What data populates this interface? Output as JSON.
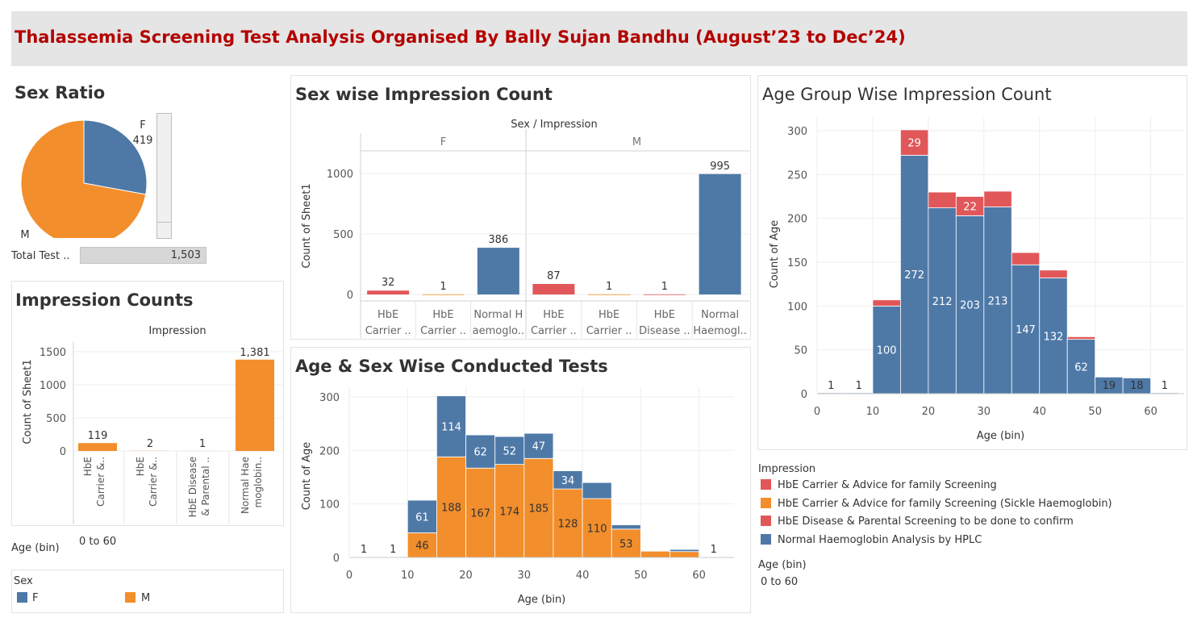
{
  "page_title": "Thalassemia Screening Test Analysis Organised By Bally Sujan Bandhu (August’23 to Dec’24)",
  "colors": {
    "blue": "#4e79a7",
    "orange": "#f28e2b",
    "red": "#e15759",
    "title_red": "#b30000"
  },
  "sex_ratio": {
    "heading": "Sex Ratio",
    "total_label": "Total Test ..",
    "total_value": "1,503"
  },
  "impression_counts": {
    "heading": "Impression Counts",
    "column_title": "Impression"
  },
  "sex_wise": {
    "heading": "Sex wise Impression Count",
    "column_title": "Sex / Impression"
  },
  "age_sex": {
    "heading": "Age & Sex Wise Conducted Tests"
  },
  "age_group": {
    "heading": "Age Group Wise Impression Count"
  },
  "filters": {
    "age_bin_label": "Age (bin)",
    "age_bin_value": "0 to 60",
    "age_bin_label_right": "Age (bin)",
    "age_bin_value_right": "0 to 60"
  },
  "sex_legend": {
    "title": "Sex",
    "items": [
      {
        "label": "F",
        "color": "#4e79a7"
      },
      {
        "label": "M",
        "color": "#f28e2b"
      }
    ]
  },
  "impression_legend": {
    "title": "Impression",
    "items": [
      {
        "label": "HbE Carrier & Advice for family Screening",
        "color": "#e15759"
      },
      {
        "label": "HbE Carrier & Advice for family Screening (Sickle Haemoglobin)",
        "color": "#f28e2b"
      },
      {
        "label": "HbE Disease & Parental Screening to be done to confirm",
        "color": "#e15759"
      },
      {
        "label": "Normal Haemoglobin Analysis by HPLC",
        "color": "#4e79a7"
      }
    ]
  },
  "chart_data": [
    {
      "id": "sex_ratio",
      "type": "pie",
      "labels": [
        "F",
        "M"
      ],
      "values": [
        419,
        1084
      ],
      "data_labels": [
        "F\n419",
        "M"
      ],
      "colors": [
        "#4e79a7",
        "#f28e2b"
      ]
    },
    {
      "id": "impression_counts",
      "type": "bar",
      "categories": [
        "HbE Carrier &..",
        "HbE Carrier &..",
        "HbE Disease & Parental ..",
        "Normal Haemoglobin.."
      ],
      "category_lines": [
        [
          "HbE",
          "Carrier &.."
        ],
        [
          "HbE",
          "Carrier &.."
        ],
        [
          "HbE Disease",
          "& Parental .."
        ],
        [
          "Normal Hae",
          "moglobin.."
        ]
      ],
      "values": [
        119,
        2,
        1,
        1381
      ],
      "value_labels": [
        "119",
        "2",
        "1",
        "1,381"
      ],
      "ylabel": "Count of Sheet1",
      "yticks": [
        0,
        500,
        1000,
        1500
      ],
      "ylim": [
        0,
        1500
      ],
      "color": "#f28e2b"
    },
    {
      "id": "sex_wise_impression",
      "type": "bar",
      "groups": [
        {
          "name": "F",
          "categories": [
            [
              "HbE",
              "Carrier .."
            ],
            [
              "HbE",
              "Carrier .."
            ],
            [
              "Normal H",
              "aemoglo.."
            ]
          ],
          "values": [
            32,
            1,
            386
          ],
          "colors": [
            "#e15759",
            "#f28e2b",
            "#4e79a7"
          ]
        },
        {
          "name": "M",
          "categories": [
            [
              "HbE",
              "Carrier .."
            ],
            [
              "HbE",
              "Carrier .."
            ],
            [
              "HbE",
              "Disease .."
            ],
            [
              "Normal",
              "Haemogl.."
            ]
          ],
          "values": [
            87,
            1,
            1,
            995
          ],
          "colors": [
            "#e15759",
            "#f28e2b",
            "#e15759",
            "#4e79a7"
          ]
        }
      ],
      "ylabel": "Count of Sheet1",
      "yticks": [
        0,
        500,
        1000
      ],
      "ylim": [
        0,
        1100
      ]
    },
    {
      "id": "age_sex_tests",
      "type": "bar",
      "stacked": true,
      "bins": [
        0,
        5,
        10,
        15,
        20,
        25,
        30,
        35,
        40,
        45,
        50,
        55,
        60
      ],
      "bin_width": 5,
      "series": [
        {
          "name": "M",
          "values": [
            1,
            1,
            46,
            188,
            167,
            174,
            185,
            128,
            110,
            53,
            12,
            11,
            0
          ],
          "color": "#f28e2b"
        },
        {
          "name": "F",
          "values": [
            0,
            0,
            61,
            114,
            62,
            52,
            47,
            34,
            30,
            8,
            1,
            4,
            1
          ],
          "color": "#4e79a7"
        }
      ],
      "labels_bottom": [
        "1",
        "1",
        "46",
        "188",
        "167",
        "174",
        "185",
        "128",
        "110",
        "53",
        "",
        "",
        ""
      ],
      "labels_top": [
        "",
        "",
        "61",
        "114",
        "62",
        "52",
        "47",
        "34",
        "",
        "",
        "",
        "",
        "1"
      ],
      "xlabel": "Age (bin)",
      "ylabel": "Count of Age",
      "xticks": [
        0,
        10,
        20,
        30,
        40,
        50,
        60
      ],
      "yticks": [
        0,
        100,
        200,
        300
      ],
      "xlim": [
        0,
        66
      ],
      "ylim": [
        0,
        305
      ]
    },
    {
      "id": "age_group_impression",
      "type": "bar",
      "stacked": true,
      "bins": [
        0,
        5,
        10,
        15,
        20,
        25,
        30,
        35,
        40,
        45,
        50,
        55,
        60
      ],
      "bin_width": 5,
      "series": [
        {
          "name": "Normal Haemoglobin Analysis by HPLC",
          "values": [
            1,
            1,
            100,
            272,
            212,
            203,
            213,
            147,
            132,
            62,
            19,
            18,
            1
          ],
          "color": "#4e79a7"
        },
        {
          "name": "HbE Carrier & Advice for family Screening",
          "values": [
            0,
            0,
            7,
            29,
            18,
            22,
            18,
            14,
            9,
            3,
            0,
            0,
            0
          ],
          "color": "#e15759"
        }
      ],
      "labels_bottom": [
        "1",
        "1",
        "100",
        "272",
        "212",
        "203",
        "213",
        "147",
        "132",
        "62",
        "19",
        "18",
        "1"
      ],
      "labels_top": [
        "",
        "",
        "",
        "29",
        "",
        "22",
        "",
        "",
        "",
        "",
        "",
        "",
        ""
      ],
      "xlabel": "Age (bin)",
      "ylabel": "Count of Age",
      "xticks": [
        0,
        10,
        20,
        30,
        40,
        50,
        60
      ],
      "yticks": [
        0,
        50,
        100,
        150,
        200,
        250,
        300
      ],
      "xlim": [
        0,
        66
      ],
      "ylim": [
        0,
        315
      ]
    }
  ]
}
